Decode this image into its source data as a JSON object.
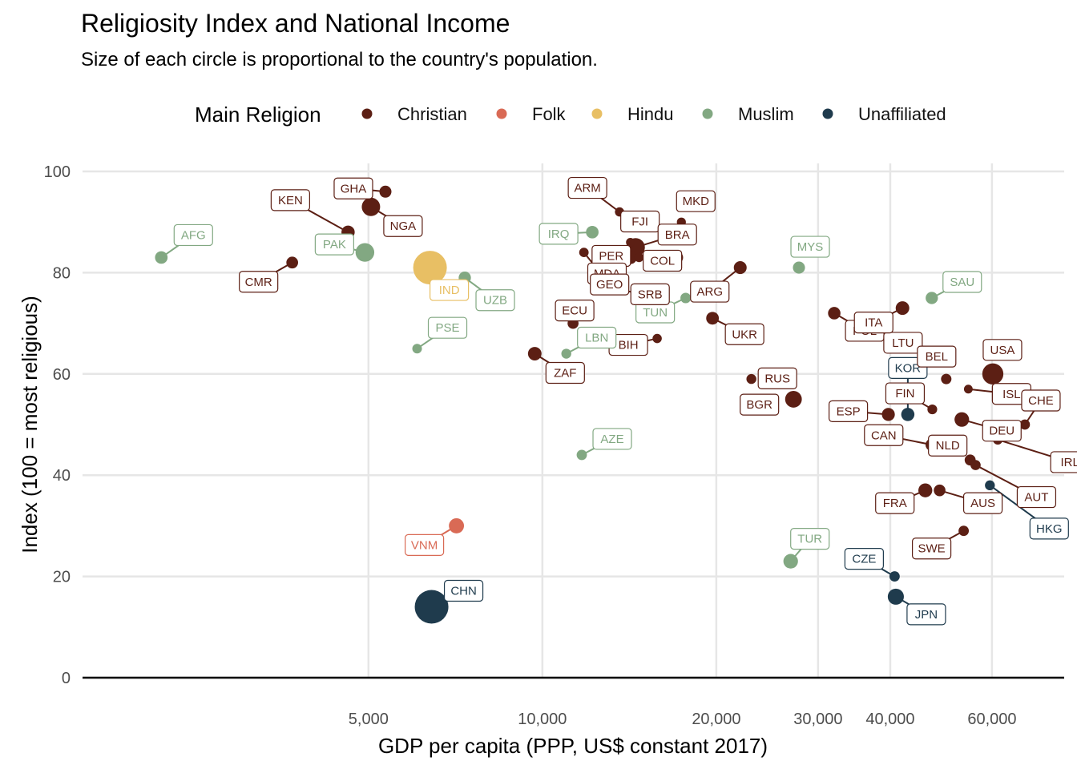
{
  "chart_data": {
    "type": "scatter",
    "title": "Religiosity Index and National Income",
    "subtitle": "Size of each circle is proportional to the country's population.",
    "xlabel": "GDP per capita (PPP, US$ constant 2017)",
    "ylabel": "Index (100 = most religious)",
    "x_scale": "log",
    "xlim": [
      1600,
      80000
    ],
    "ylim": [
      0,
      100
    ],
    "x_ticks": [
      5000,
      10000,
      20000,
      30000,
      40000,
      60000
    ],
    "x_tick_labels": [
      "5,000",
      "10,000",
      "20,000",
      "30,000",
      "40,000",
      "60,000"
    ],
    "y_ticks": [
      0,
      20,
      40,
      60,
      80,
      100
    ],
    "y_tick_labels": [
      "0",
      "20",
      "40",
      "60",
      "80",
      "100"
    ],
    "grid": true,
    "legend": {
      "title": "Main Religion",
      "position": "top",
      "entries": [
        {
          "name": "Christian",
          "color": "#5c1f14"
        },
        {
          "name": "Folk",
          "color": "#d96a55"
        },
        {
          "name": "Hindu",
          "color": "#e8bf64"
        },
        {
          "name": "Muslim",
          "color": "#82a882"
        },
        {
          "name": "Unaffiliated",
          "color": "#1f3b4d"
        }
      ]
    },
    "points": [
      {
        "label": "AFG",
        "group": "Muslim",
        "x": 2190,
        "y": 83,
        "size": 40,
        "ldx": 40,
        "ldy": -28
      },
      {
        "label": "PAK",
        "group": "Muslim",
        "x": 4930,
        "y": 84,
        "size": 220,
        "ldx": -38,
        "ldy": -10
      },
      {
        "label": "IND",
        "group": "Hindu",
        "x": 6390,
        "y": 81,
        "size": 1380,
        "ldx": 24,
        "ldy": 28
      },
      {
        "label": "UZB",
        "group": "Muslim",
        "x": 7340,
        "y": 79,
        "size": 35,
        "ldx": 38,
        "ldy": 28
      },
      {
        "label": "PSE",
        "group": "Muslim",
        "x": 6070,
        "y": 65,
        "size": 5,
        "ldx": 38,
        "ldy": -26
      },
      {
        "label": "CMR",
        "group": "Christian",
        "x": 3690,
        "y": 82,
        "size": 27,
        "ldx": -42,
        "ldy": 24
      },
      {
        "label": "KEN",
        "group": "Christian",
        "x": 4610,
        "y": 88,
        "size": 53,
        "ldx": -72,
        "ldy": -40
      },
      {
        "label": "GHA",
        "group": "Christian",
        "x": 5350,
        "y": 96,
        "size": 31,
        "ldx": -40,
        "ldy": -4
      },
      {
        "label": "NGA",
        "group": "Christian",
        "x": 5050,
        "y": 93,
        "size": 206,
        "ldx": 40,
        "ldy": 24
      },
      {
        "label": "VNM",
        "group": "Folk",
        "x": 7100,
        "y": 30,
        "size": 97,
        "ldx": -40,
        "ldy": 24
      },
      {
        "label": "ARM",
        "group": "Christian",
        "x": 13600,
        "y": 92,
        "size": 3,
        "ldx": -40,
        "ldy": -30
      },
      {
        "label": "IRQ",
        "group": "Muslim",
        "x": 12200,
        "y": 88,
        "size": 40,
        "ldx": -42,
        "ldy": 2
      },
      {
        "label": "FJI",
        "group": "Christian",
        "x": 14200,
        "y": 86,
        "size": 1,
        "ldx": 12,
        "ldy": -26
      },
      {
        "label": "MKD",
        "group": "Christian",
        "x": 17400,
        "y": 90,
        "size": 2,
        "ldx": 18,
        "ldy": -26
      },
      {
        "label": "BRA",
        "group": "Christian",
        "x": 14500,
        "y": 85,
        "size": 212,
        "ldx": 52,
        "ldy": -16
      },
      {
        "label": "PER",
        "group": "Christian",
        "x": 17100,
        "y": 83,
        "size": 33,
        "ldx": -82,
        "ldy": -2
      },
      {
        "label": "MDA",
        "group": "Christian",
        "x": 14700,
        "y": 83,
        "size": 3,
        "ldx": -40,
        "ldy": 20
      },
      {
        "label": "COL",
        "group": "Christian",
        "x": 14200,
        "y": 83,
        "size": 50,
        "ldx": 40,
        "ldy": 4
      },
      {
        "label": "GEO",
        "group": "Christian",
        "x": 11800,
        "y": 84,
        "size": 4,
        "ldx": 32,
        "ldy": 40
      },
      {
        "label": "TUN",
        "group": "Muslim",
        "x": 17700,
        "y": 75,
        "size": 12,
        "ldx": -38,
        "ldy": 18
      },
      {
        "label": "ECU",
        "group": "Christian",
        "x": 11300,
        "y": 70,
        "size": 17,
        "ldx": 2,
        "ldy": -16
      },
      {
        "label": "SRB",
        "group": "Christian",
        "x": 12600,
        "y": 77,
        "size": 7,
        "ldx": 62,
        "ldy": 8
      },
      {
        "label": "UKR",
        "group": "Christian",
        "x": 19700,
        "y": 71,
        "size": 42,
        "ldx": 40,
        "ldy": 20
      },
      {
        "label": "BIH",
        "group": "Christian",
        "x": 15800,
        "y": 67,
        "size": 3,
        "ldx": -36,
        "ldy": 8
      },
      {
        "label": "ZAF",
        "group": "Christian",
        "x": 9700,
        "y": 64,
        "size": 59,
        "ldx": 38,
        "ldy": 24
      },
      {
        "label": "AZE",
        "group": "Muslim",
        "x": 11700,
        "y": 44,
        "size": 10,
        "ldx": 38,
        "ldy": -20
      },
      {
        "label": "CHN",
        "group": "Unaffiliated",
        "x": 6430,
        "y": 14,
        "size": 1400,
        "ldx": 40,
        "ldy": -20
      },
      {
        "label": "LBN",
        "group": "Muslim",
        "x": 11000,
        "y": 64,
        "size": 7,
        "ldx": 38,
        "ldy": -20
      },
      {
        "label": "MYS",
        "group": "Muslim",
        "x": 27800,
        "y": 81,
        "size": 32,
        "ldx": 14,
        "ldy": -26
      },
      {
        "label": "ARG",
        "group": "Christian",
        "x": 22000,
        "y": 81,
        "size": 45,
        "ldx": -38,
        "ldy": 30
      },
      {
        "label": "POL",
        "group": "Christian",
        "x": 32000,
        "y": 72,
        "size": 38,
        "ldx": 38,
        "ldy": 22
      },
      {
        "label": "LTU",
        "group": "Christian",
        "x": 38000,
        "y": 69,
        "size": 3,
        "ldx": 32,
        "ldy": 18
      },
      {
        "label": "BGR",
        "group": "Christian",
        "x": 23000,
        "y": 59,
        "size": 7,
        "ldx": 10,
        "ldy": 32
      },
      {
        "label": "RUS",
        "group": "Christian",
        "x": 27200,
        "y": 55,
        "size": 145,
        "ldx": -20,
        "ldy": -26
      },
      {
        "label": "ESP",
        "group": "Christian",
        "x": 39700,
        "y": 52,
        "size": 47,
        "ldx": -50,
        "ldy": -4
      },
      {
        "label": "TUR",
        "group": "Muslim",
        "x": 26900,
        "y": 23,
        "size": 83,
        "ldx": 24,
        "ldy": -28
      },
      {
        "label": "KOR",
        "group": "Unaffiliated",
        "x": 42900,
        "y": 52,
        "size": 52,
        "ldx": 0,
        "ldy": -58
      },
      {
        "label": "CZE",
        "group": "Unaffiliated",
        "x": 40700,
        "y": 20,
        "size": 10,
        "ldx": -38,
        "ldy": -22
      },
      {
        "label": "JPN",
        "group": "Unaffiliated",
        "x": 40900,
        "y": 16,
        "size": 126,
        "ldx": 38,
        "ldy": 22
      },
      {
        "label": "ITA",
        "group": "Christian",
        "x": 42000,
        "y": 73,
        "size": 60,
        "ldx": -36,
        "ldy": 18
      },
      {
        "label": "SAU",
        "group": "Muslim",
        "x": 47200,
        "y": 75,
        "size": 35,
        "ldx": 38,
        "ldy": -20
      },
      {
        "label": "BEL",
        "group": "Christian",
        "x": 50000,
        "y": 59,
        "size": 11,
        "ldx": -12,
        "ldy": -28
      },
      {
        "label": "USA",
        "group": "Christian",
        "x": 60200,
        "y": 60,
        "size": 330,
        "ldx": 12,
        "ldy": -30
      },
      {
        "label": "ISL",
        "group": "Christian",
        "x": 54600,
        "y": 57,
        "size": 1,
        "ldx": 54,
        "ldy": 6
      },
      {
        "label": "FIN",
        "group": "Christian",
        "x": 47300,
        "y": 53,
        "size": 6,
        "ldx": -34,
        "ldy": -20
      },
      {
        "label": "DEU",
        "group": "Christian",
        "x": 53200,
        "y": 51,
        "size": 83,
        "ldx": 50,
        "ldy": 14
      },
      {
        "label": "CHE",
        "group": "Christian",
        "x": 68400,
        "y": 50,
        "size": 9,
        "ldx": 20,
        "ldy": -30
      },
      {
        "label": "CAN",
        "group": "Christian",
        "x": 47200,
        "y": 46,
        "size": 38,
        "ldx": -60,
        "ldy": -12
      },
      {
        "label": "IRL",
        "group": "Christian",
        "x": 61400,
        "y": 47,
        "size": 5,
        "ldx": 90,
        "ldy": 28
      },
      {
        "label": "NLD",
        "group": "Christian",
        "x": 55000,
        "y": 43,
        "size": 17,
        "ldx": -28,
        "ldy": -18
      },
      {
        "label": "AUT",
        "group": "Christian",
        "x": 56200,
        "y": 42,
        "size": 9,
        "ldx": 76,
        "ldy": 40
      },
      {
        "label": "HKG",
        "group": "Unaffiliated",
        "x": 59500,
        "y": 38,
        "size": 7,
        "ldx": 74,
        "ldy": 54
      },
      {
        "label": "FRA",
        "group": "Christian",
        "x": 46000,
        "y": 37,
        "size": 67,
        "ldx": -38,
        "ldy": 16
      },
      {
        "label": "AUS",
        "group": "Christian",
        "x": 48700,
        "y": 37,
        "size": 26,
        "ldx": 54,
        "ldy": 16
      },
      {
        "label": "SWE",
        "group": "Christian",
        "x": 53600,
        "y": 29,
        "size": 10,
        "ldx": -40,
        "ldy": 22
      }
    ]
  }
}
